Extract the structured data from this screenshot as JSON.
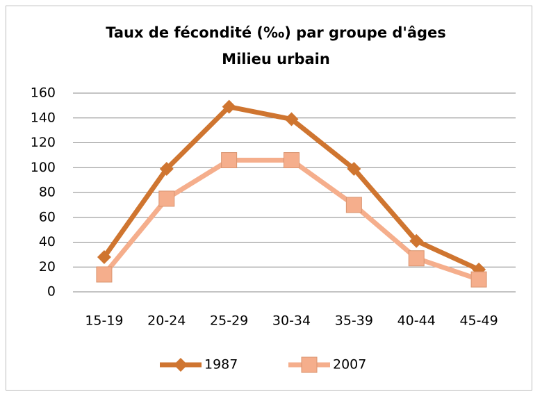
{
  "chart_data": {
    "type": "line",
    "title": "Taux de fécondité (‰) par groupe d'âges",
    "subtitle": "Milieu urbain",
    "categories": [
      "15-19",
      "20-24",
      "25-29",
      "30-34",
      "35-39",
      "40-44",
      "45-49"
    ],
    "series": [
      {
        "name": "1987",
        "color": "#cf7530",
        "marker": "diamond",
        "values": [
          28,
          99,
          149,
          139,
          99,
          41,
          18
        ]
      },
      {
        "name": "2007",
        "color": "#f5ae8c",
        "marker": "square",
        "values": [
          14,
          75,
          106,
          106,
          70,
          27,
          10
        ]
      }
    ],
    "ylim": [
      0,
      160
    ],
    "yticks": [
      0,
      20,
      40,
      60,
      80,
      100,
      120,
      140,
      160
    ],
    "grid": true,
    "legend": "bottom"
  }
}
